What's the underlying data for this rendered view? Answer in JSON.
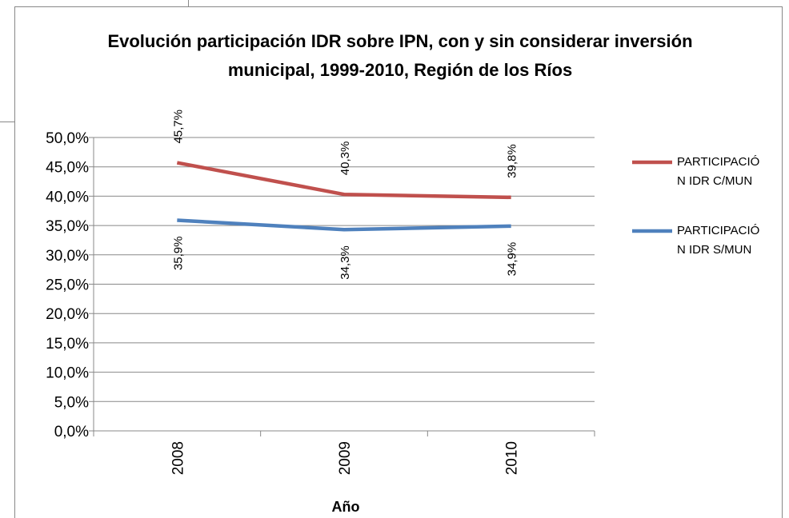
{
  "chart_data": {
    "type": "line",
    "title": "Evolución participación IDR sobre IPN, con y sin considerar inversión municipal, 1999-2010, Región de los Ríos",
    "x_label": "Año",
    "categories": [
      "2008",
      "2009",
      "2010"
    ],
    "series": [
      {
        "name": "PARTICIPACIÓN IDR C/MUN",
        "color": "#c0504d",
        "values": [
          45.7,
          40.3,
          39.8
        ],
        "value_labels": [
          "45,7%",
          "40,3%",
          "39,8%"
        ]
      },
      {
        "name": "PARTICIPACIÓN IDR S/MUN",
        "color": "#4f81bd",
        "values": [
          35.9,
          34.3,
          34.9
        ],
        "value_labels": [
          "35,9%",
          "34,3%",
          "34,9%"
        ]
      }
    ],
    "ylim": [
      0,
      50
    ],
    "yticks": [
      {
        "value": 0,
        "label": "0,0%"
      },
      {
        "value": 5,
        "label": "5,0%"
      },
      {
        "value": 10,
        "label": "10,0%"
      },
      {
        "value": 15,
        "label": "15,0%"
      },
      {
        "value": 20,
        "label": "20,0%"
      },
      {
        "value": 25,
        "label": "25,0%"
      },
      {
        "value": 30,
        "label": "30,0%"
      },
      {
        "value": 35,
        "label": "35,0%"
      },
      {
        "value": 40,
        "label": "40,0%"
      },
      {
        "value": 45,
        "label": "45,0%"
      },
      {
        "value": 50,
        "label": "50,0%"
      }
    ],
    "grid": true,
    "legend": "right"
  }
}
